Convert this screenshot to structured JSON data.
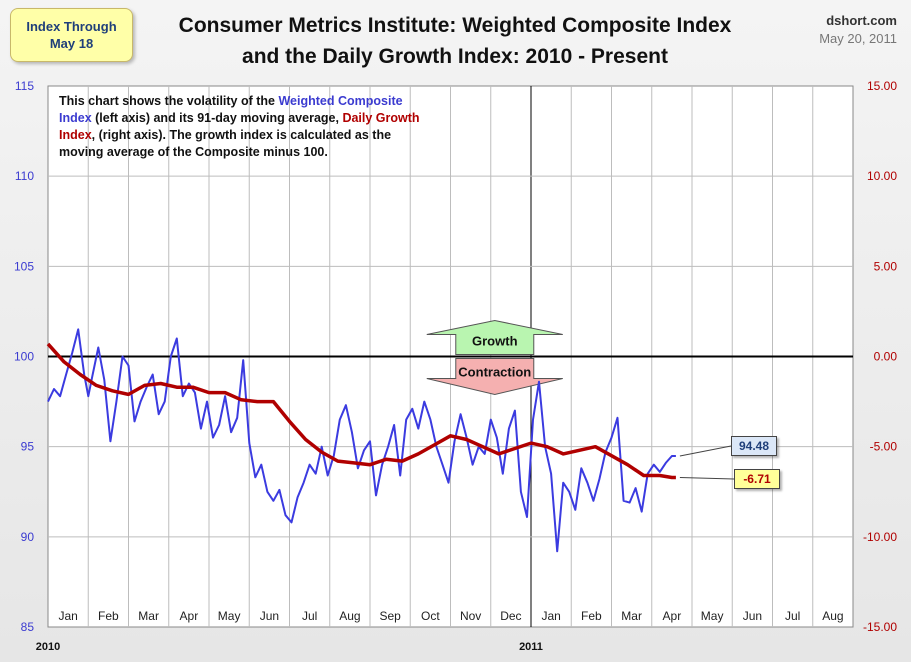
{
  "badge": {
    "line1": "Index Through",
    "line2": "May 18"
  },
  "title": {
    "line1": "Consumer Metrics Institute: Weighted Composite Index",
    "line2": "and the Daily Growth Index: 2010 - Present"
  },
  "source": {
    "site": "dshort.com",
    "date": "May 20, 2011"
  },
  "note": {
    "p1": "This chart shows the volatility of the ",
    "composite": "Weighted Composite Index",
    "p2": " (left axis) and its 91-day moving average, ",
    "growth": "Daily Growth Index",
    "p3": ", (right axis). The growth index is calculated as the moving average of the Composite minus 100."
  },
  "arrows": {
    "up": "Growth",
    "down": "Contraction"
  },
  "last_values": {
    "composite": "94.48",
    "growth": "-6.71"
  },
  "colors": {
    "composite": "#3b3be0",
    "growth": "#b00000",
    "left_axis": "#3b3bd0",
    "right_axis": "#b00000",
    "growth_arrow": "#b9f5b0",
    "contraction_arrow": "#f5b0b0"
  },
  "chart_data": {
    "type": "line",
    "left_axis": {
      "ylim": [
        85,
        115
      ],
      "ticks": [
        "85",
        "90",
        "95",
        "100",
        "105",
        "110",
        "115"
      ]
    },
    "right_axis": {
      "ylim": [
        -15,
        15
      ],
      "ticks": [
        "-15.00",
        "-10.00",
        "-5.00",
        "0.00",
        "5.00",
        "10.00",
        "15.00"
      ]
    },
    "x_months": [
      "Jan",
      "Feb",
      "Mar",
      "Apr",
      "May",
      "Jun",
      "Jul",
      "Aug",
      "Sep",
      "Oct",
      "Nov",
      "Dec",
      "Jan",
      "Feb",
      "Mar",
      "Apr",
      "May",
      "Jun",
      "Jul",
      "Aug"
    ],
    "year_labels": [
      "2010",
      "2011"
    ],
    "grid": true,
    "series": [
      {
        "axis": "left",
        "x": [
          0.0,
          0.15,
          0.3,
          0.45,
          0.6,
          0.75,
          0.9,
          1.0,
          1.1,
          1.25,
          1.4,
          1.55,
          1.7,
          1.85,
          2.0,
          2.15,
          2.3,
          2.45,
          2.6,
          2.75,
          2.9,
          3.05,
          3.2,
          3.35,
          3.5,
          3.65,
          3.8,
          3.95,
          4.1,
          4.25,
          4.4,
          4.55,
          4.7,
          4.85,
          5.0,
          5.15,
          5.3,
          5.45,
          5.6,
          5.75,
          5.9,
          6.05,
          6.2,
          6.35,
          6.5,
          6.65,
          6.8,
          6.95,
          7.1,
          7.25,
          7.4,
          7.55,
          7.7,
          7.85,
          8.0,
          8.15,
          8.3,
          8.45,
          8.6,
          8.75,
          8.9,
          9.05,
          9.2,
          9.35,
          9.5,
          9.65,
          9.8,
          9.95,
          10.1,
          10.25,
          10.4,
          10.55,
          10.7,
          10.85,
          11.0,
          11.15,
          11.3,
          11.45,
          11.6,
          11.75,
          11.9,
          12.05,
          12.2,
          12.35,
          12.5,
          12.65,
          12.8,
          12.95,
          13.1,
          13.25,
          13.4,
          13.55,
          13.7,
          13.85,
          14.0,
          14.15,
          14.3,
          14.45,
          14.6,
          14.75,
          14.9,
          15.05,
          15.2,
          15.35,
          15.5,
          15.6
        ],
        "values": [
          97.5,
          98.2,
          97.8,
          99.0,
          100.2,
          101.5,
          99.0,
          97.8,
          98.9,
          100.5,
          98.7,
          95.3,
          97.5,
          100.0,
          99.5,
          96.4,
          97.5,
          98.3,
          99.0,
          96.8,
          97.5,
          100.0,
          101.0,
          97.8,
          98.5,
          98.0,
          96.0,
          97.5,
          95.5,
          96.2,
          97.8,
          95.8,
          96.6,
          99.8,
          95.2,
          93.3,
          94.0,
          92.5,
          92.0,
          92.6,
          91.2,
          90.8,
          92.2,
          93.0,
          94.0,
          93.5,
          95.0,
          93.4,
          94.5,
          96.5,
          97.3,
          95.8,
          93.8,
          94.8,
          95.3,
          92.3,
          94.0,
          95.0,
          96.2,
          93.4,
          96.5,
          97.1,
          96.0,
          97.5,
          96.5,
          95.0,
          94.0,
          93.0,
          95.3,
          96.8,
          95.5,
          94.0,
          95.0,
          94.6,
          96.5,
          95.5,
          93.5,
          96.0,
          97.0,
          92.5,
          91.1,
          96.5,
          98.6,
          95.0,
          93.5,
          89.2,
          93.0,
          92.5,
          91.5,
          93.8,
          93.0,
          92.0,
          93.2,
          94.7,
          95.5,
          96.6,
          92.0,
          91.9,
          92.7,
          91.4,
          93.5,
          94.0,
          93.6,
          94.1,
          94.48,
          94.48
        ]
      },
      {
        "axis": "right",
        "x": [
          0.0,
          0.4,
          0.8,
          1.2,
          1.6,
          2.0,
          2.4,
          2.8,
          3.2,
          3.6,
          4.0,
          4.4,
          4.8,
          5.2,
          5.6,
          6.0,
          6.4,
          6.8,
          7.2,
          7.6,
          8.0,
          8.4,
          8.8,
          9.2,
          9.6,
          10.0,
          10.4,
          10.8,
          11.2,
          11.6,
          12.0,
          12.4,
          12.8,
          13.2,
          13.6,
          14.0,
          14.4,
          14.8,
          15.2,
          15.5,
          15.6
        ],
        "values": [
          0.7,
          -0.3,
          -1.0,
          -1.6,
          -1.9,
          -2.1,
          -1.6,
          -1.5,
          -1.7,
          -1.7,
          -2.0,
          -2.0,
          -2.4,
          -2.5,
          -2.5,
          -3.6,
          -4.6,
          -5.3,
          -5.8,
          -5.9,
          -6.0,
          -5.7,
          -5.8,
          -5.4,
          -4.9,
          -4.4,
          -4.6,
          -5.0,
          -5.4,
          -5.1,
          -4.8,
          -5.0,
          -5.4,
          -5.2,
          -5.0,
          -5.5,
          -6.0,
          -6.6,
          -6.6,
          -6.71,
          -6.71
        ]
      }
    ]
  }
}
